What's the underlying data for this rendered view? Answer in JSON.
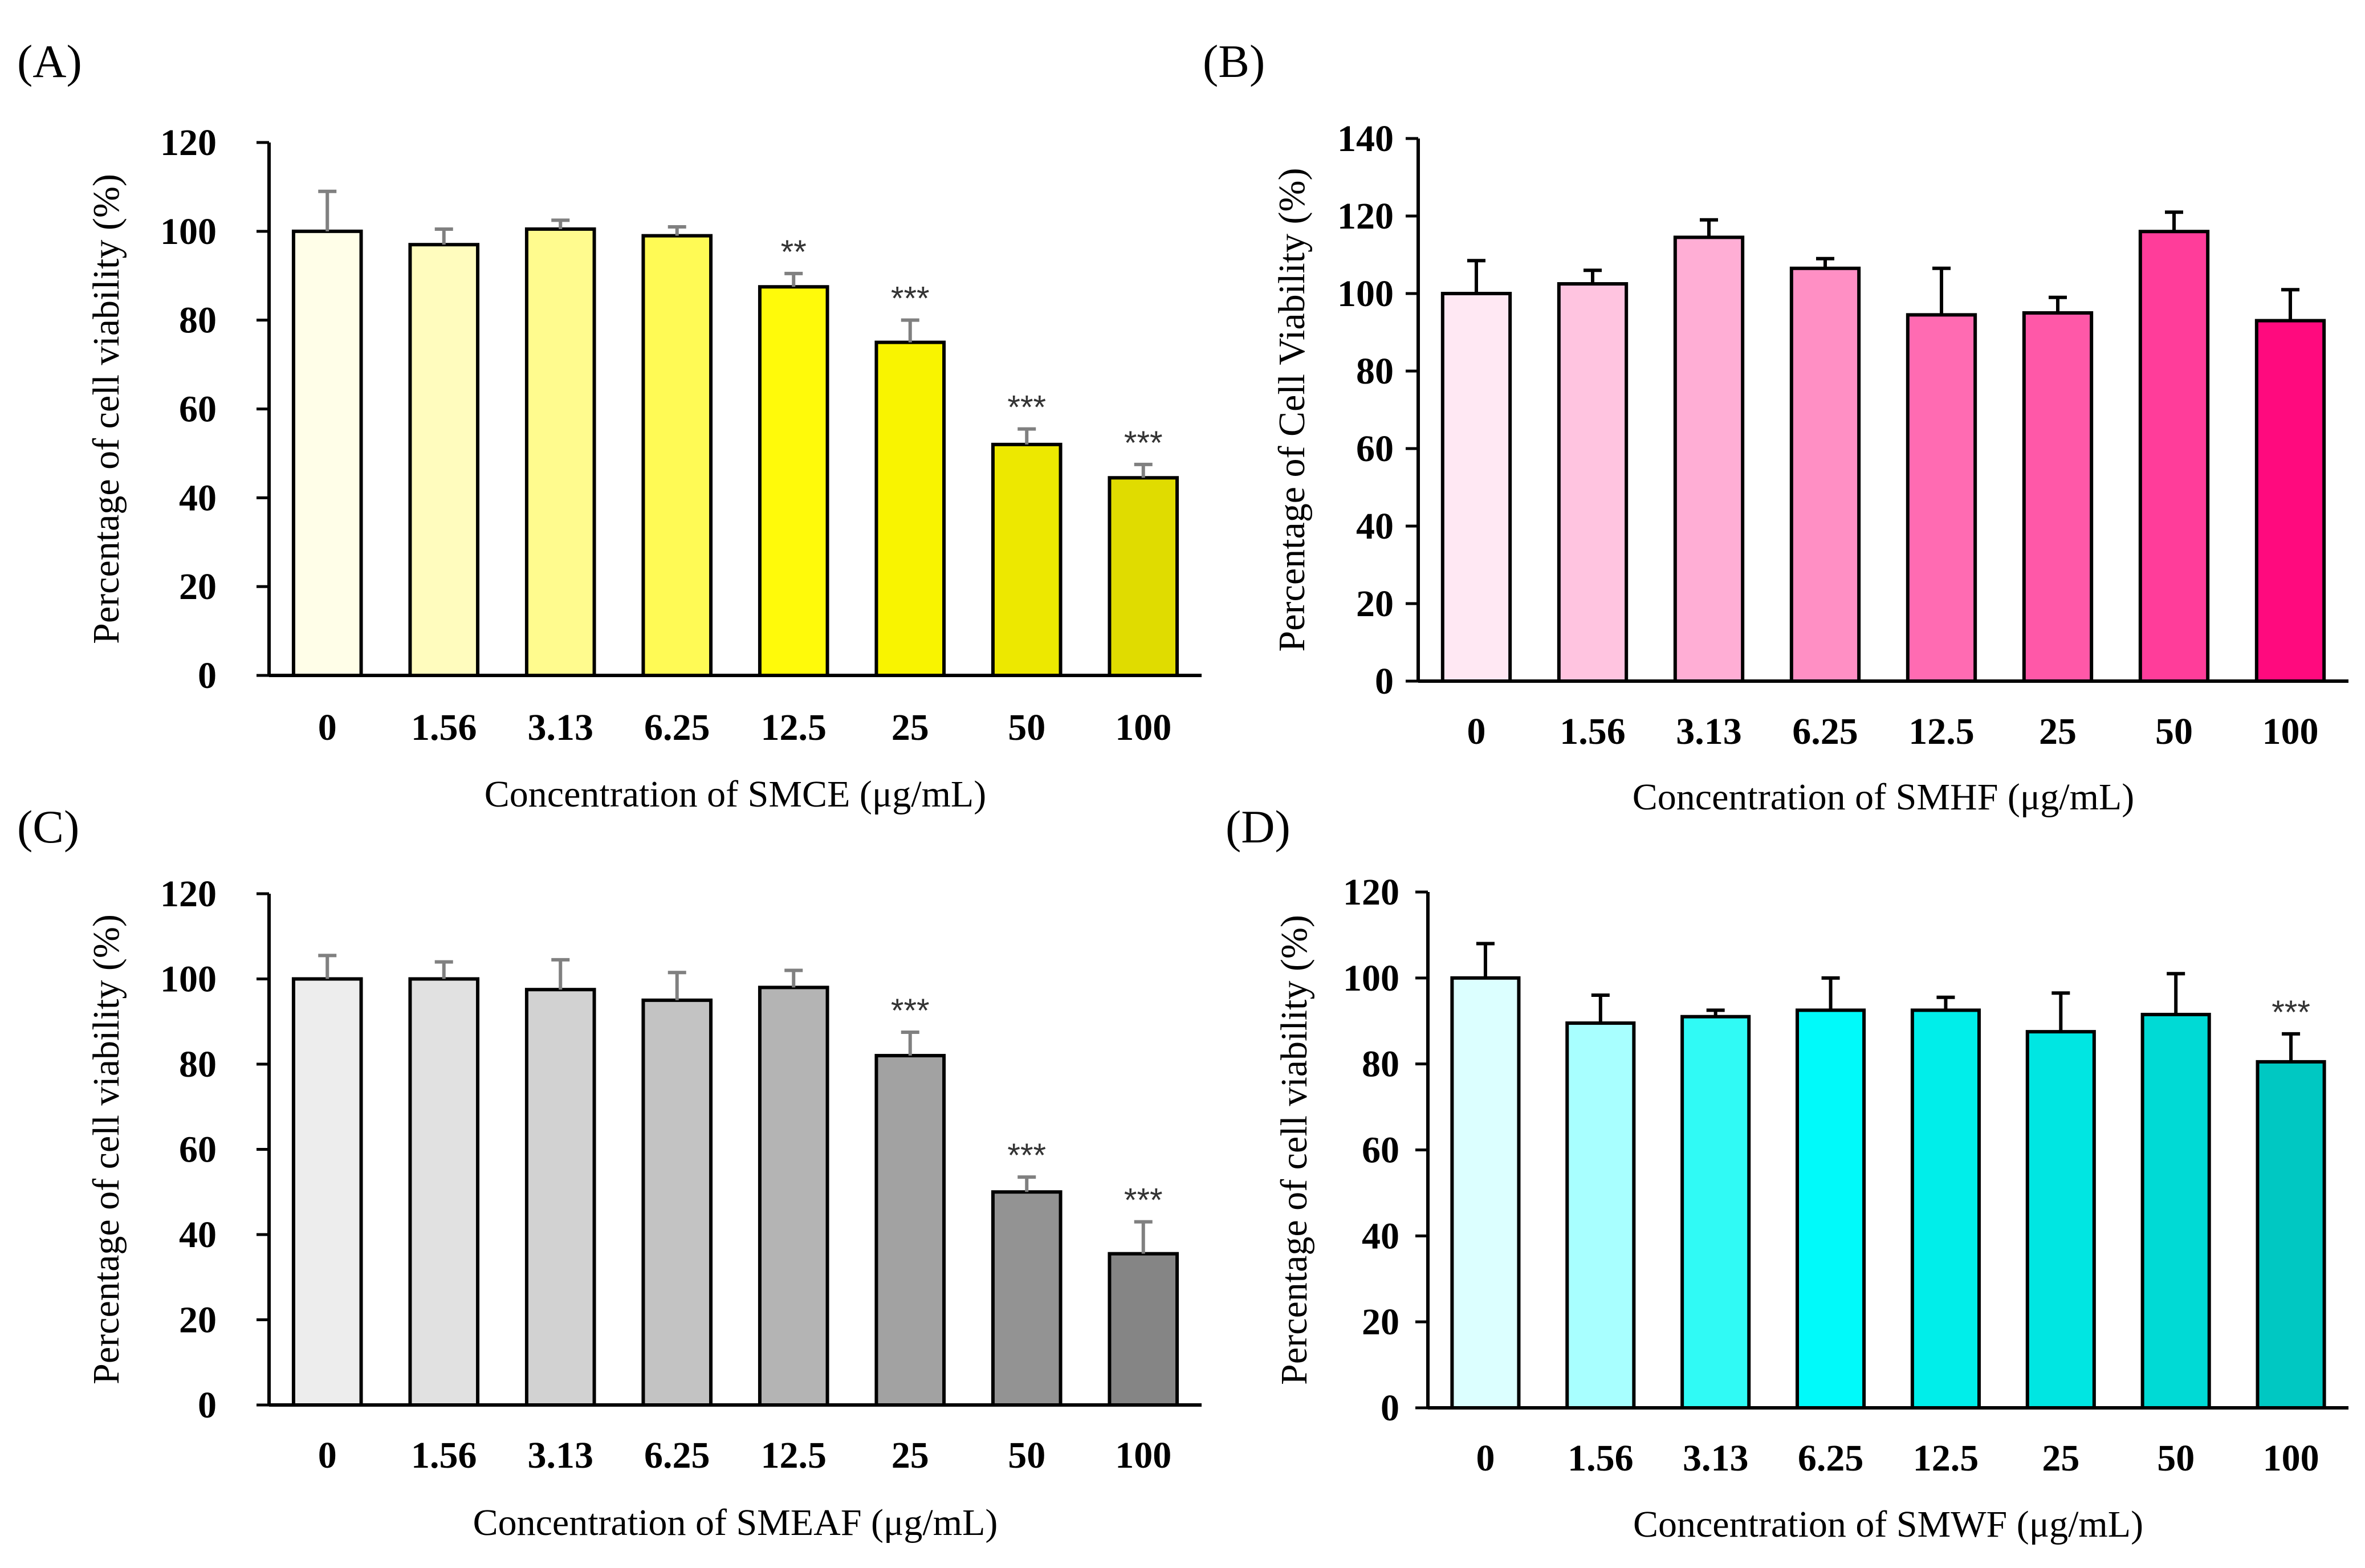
{
  "chart_data": [
    {
      "panel": "(A)",
      "type": "bar",
      "categories": [
        "0",
        "1.56",
        "3.13",
        "6.25",
        "12.5",
        "25",
        "50",
        "100"
      ],
      "values": [
        100,
        97,
        100.5,
        99,
        87.5,
        75,
        52,
        44.5
      ],
      "errors": [
        9,
        3.5,
        2,
        2,
        3,
        5,
        3.5,
        3
      ],
      "significance": [
        "",
        "",
        "",
        "",
        "**",
        "***",
        "***",
        "***"
      ],
      "colors": [
        "#FFFEE8",
        "#FFFCBE",
        "#FFFB8E",
        "#FFFA55",
        "#FFFA0A",
        "#F9F400",
        "#EDE800",
        "#E0DC00"
      ],
      "error_color": "#808080",
      "xlabel": "Concentration of SMCE (μg/mL)",
      "ylabel": "Percentage of cell viability  (%)",
      "ylim": [
        0,
        120
      ],
      "yticks": [
        "0",
        "20",
        "40",
        "60",
        "80",
        "100",
        "120"
      ]
    },
    {
      "panel": "(B)",
      "type": "bar",
      "categories": [
        "0",
        "1.56",
        "3.13",
        "6.25",
        "12.5",
        "25",
        "50",
        "100"
      ],
      "values": [
        100,
        102.5,
        114.5,
        106.5,
        94.5,
        95,
        116,
        93
      ],
      "errors": [
        8.5,
        3.5,
        4.5,
        2.5,
        12,
        4,
        5,
        8
      ],
      "significance": [
        "",
        "",
        "",
        "",
        "",
        "",
        "",
        ""
      ],
      "colors": [
        "#FFE8F3",
        "#FFC4E0",
        "#FFAED5",
        "#FF8FC4",
        "#FF6BB2",
        "#FF58A8",
        "#FF3D9A",
        "#FF0A7E"
      ],
      "error_color": "#000000",
      "xlabel": "Concentration of SMHF (μg/mL)",
      "ylabel": "Percentage of Cell Viability  (%)",
      "ylim": [
        0,
        140
      ],
      "yticks": [
        "0",
        "20",
        "40",
        "60",
        "80",
        "100",
        "120",
        "140"
      ]
    },
    {
      "panel": "(C)",
      "type": "bar",
      "categories": [
        "0",
        "1.56",
        "3.13",
        "6.25",
        "12.5",
        "25",
        "50",
        "100"
      ],
      "values": [
        100,
        100,
        97.5,
        95,
        98,
        82,
        50,
        35.5
      ],
      "errors": [
        5.5,
        4,
        7,
        6.5,
        4,
        5.5,
        3.5,
        7.5
      ],
      "significance": [
        "",
        "",
        "",
        "",
        "",
        "***",
        "***",
        "***"
      ],
      "colors": [
        "#EDEDED",
        "#E1E1E1",
        "#D2D2D2",
        "#C3C3C3",
        "#B4B4B4",
        "#A2A2A2",
        "#939393",
        "#858585"
      ],
      "error_color": "#808080",
      "xlabel": "Concentration of SMEAF (μg/mL)",
      "ylabel": "Percentage of cell viability  (%)",
      "ylim": [
        0,
        120
      ],
      "yticks": [
        "0",
        "20",
        "40",
        "60",
        "80",
        "100",
        "120"
      ]
    },
    {
      "panel": "(D)",
      "type": "bar",
      "categories": [
        "0",
        "1.56",
        "3.13",
        "6.25",
        "12.5",
        "25",
        "50",
        "100"
      ],
      "values": [
        100,
        89.5,
        91,
        92.5,
        92.5,
        87.5,
        91.5,
        80.5
      ],
      "errors": [
        8,
        6.5,
        1.5,
        7.5,
        3,
        9,
        9.5,
        6.5
      ],
      "significance": [
        "",
        "",
        "",
        "",
        "",
        "",
        "",
        "***"
      ],
      "colors": [
        "#DCFFFF",
        "#A8FFFF",
        "#30FAF5",
        "#00FAFA",
        "#00EEEA",
        "#00E6E2",
        "#00DAD5",
        "#00C8C2"
      ],
      "error_color": "#000000",
      "xlabel": "Concentration of SMWF (μg/mL)",
      "ylabel": "Percentage of cell viability  (%)",
      "ylim": [
        0,
        120
      ],
      "yticks": [
        "0",
        "20",
        "40",
        "60",
        "80",
        "100",
        "120"
      ]
    }
  ]
}
